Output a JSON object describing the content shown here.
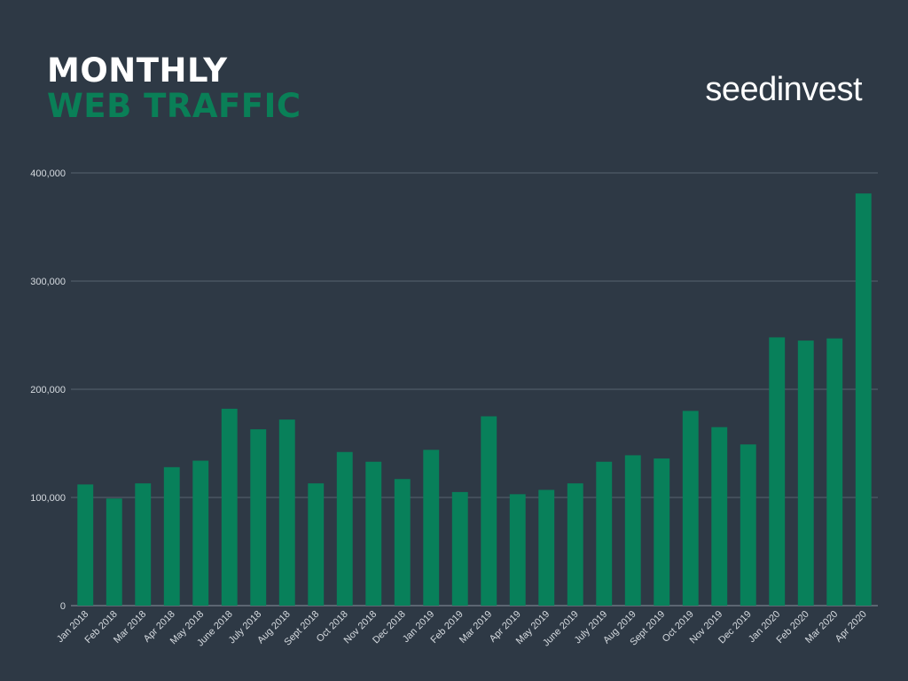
{
  "header": {
    "title_line1": "MONTHLY",
    "title_line2": "WEB TRAFFIC",
    "logo_text": "seedinvest"
  },
  "colors": {
    "background": "#2e3945",
    "bar": "#08805a",
    "title_accent": "#0a7f57",
    "gridline": "#56626e"
  },
  "chart_data": {
    "type": "bar",
    "title": "MONTHLY WEB TRAFFIC",
    "xlabel": "",
    "ylabel": "",
    "ylim": [
      0,
      400000
    ],
    "y_ticks": [
      0,
      100000,
      200000,
      300000,
      400000
    ],
    "y_tick_labels": [
      "0",
      "100,000",
      "200,000",
      "300,000",
      "400,000"
    ],
    "grid": true,
    "categories": [
      "Jan 2018",
      "Feb 2018",
      "Mar 2018",
      "Apr 2018",
      "May 2018",
      "June 2018",
      "July 2018",
      "Aug 2018",
      "Sept 2018",
      "Oct 2018",
      "Nov 2018",
      "Dec 2018",
      "Jan 2019",
      "Feb 2019",
      "Mar 2019",
      "Apr 2019",
      "May 2019",
      "June 2019",
      "July 2019",
      "Aug 2019",
      "Sept 2019",
      "Oct 2019",
      "Nov 2019",
      "Dec 2019",
      "Jan 2020",
      "Feb 2020",
      "Mar 2020",
      "Apr 2020"
    ],
    "values": [
      112000,
      99000,
      113000,
      128000,
      134000,
      182000,
      163000,
      172000,
      113000,
      142000,
      133000,
      117000,
      144000,
      105000,
      175000,
      103000,
      107000,
      113000,
      133000,
      139000,
      136000,
      180000,
      165000,
      149000,
      248000,
      245000,
      247000,
      381000
    ]
  }
}
